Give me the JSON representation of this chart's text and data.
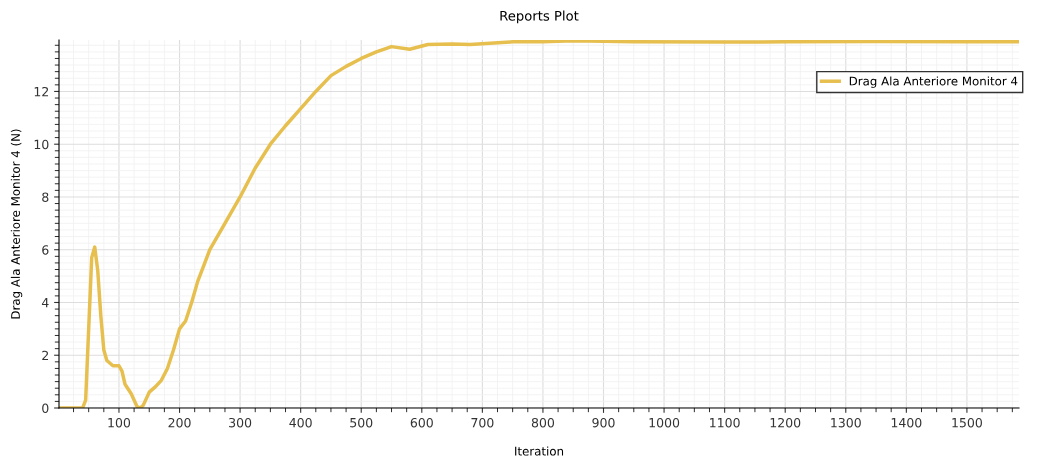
{
  "chart_data": {
    "type": "line",
    "title": "Reports Plot",
    "xlabel": "Iteration",
    "ylabel": "Drag Ala Anteriore Monitor 4 (N)",
    "xlim": [
      1,
      1586
    ],
    "ylim": [
      0,
      13.95
    ],
    "xticks": [
      100,
      200,
      300,
      400,
      500,
      600,
      700,
      800,
      900,
      1000,
      1100,
      1200,
      1300,
      1400,
      1500
    ],
    "yticks": [
      0,
      2,
      4,
      6,
      8,
      10,
      12
    ],
    "grid": true,
    "legend": "top right",
    "marker": "none",
    "line_style": "solid",
    "series": [
      {
        "name": "Drag Ala Anteriore Monitor 4",
        "color": "#e6bf4f",
        "x": [
          1,
          40,
          45,
          50,
          55,
          60,
          65,
          70,
          75,
          80,
          90,
          100,
          105,
          110,
          120,
          130,
          135,
          140,
          150,
          160,
          170,
          180,
          190,
          200,
          210,
          220,
          230,
          240,
          250,
          270,
          300,
          325,
          350,
          375,
          400,
          425,
          450,
          475,
          500,
          525,
          550,
          580,
          610,
          650,
          680,
          750,
          800,
          850,
          900,
          950,
          1100,
          1200,
          1350,
          1500,
          1586
        ],
        "values": [
          0,
          0,
          0.3,
          3,
          5.7,
          6.1,
          5.2,
          3.5,
          2.2,
          1.8,
          1.6,
          1.6,
          1.4,
          0.9,
          0.55,
          0.05,
          0,
          0.1,
          0.6,
          0.8,
          1.05,
          1.5,
          2.2,
          3.0,
          3.3,
          4.0,
          4.8,
          5.4,
          6.0,
          6.8,
          8.0,
          9.1,
          10.0,
          10.7,
          11.35,
          12.0,
          12.6,
          12.95,
          13.25,
          13.5,
          13.7,
          13.6,
          13.78,
          13.8,
          13.78,
          13.88,
          13.88,
          13.92,
          13.9,
          13.88,
          13.87,
          13.88,
          13.89,
          13.88,
          13.88
        ]
      }
    ]
  }
}
